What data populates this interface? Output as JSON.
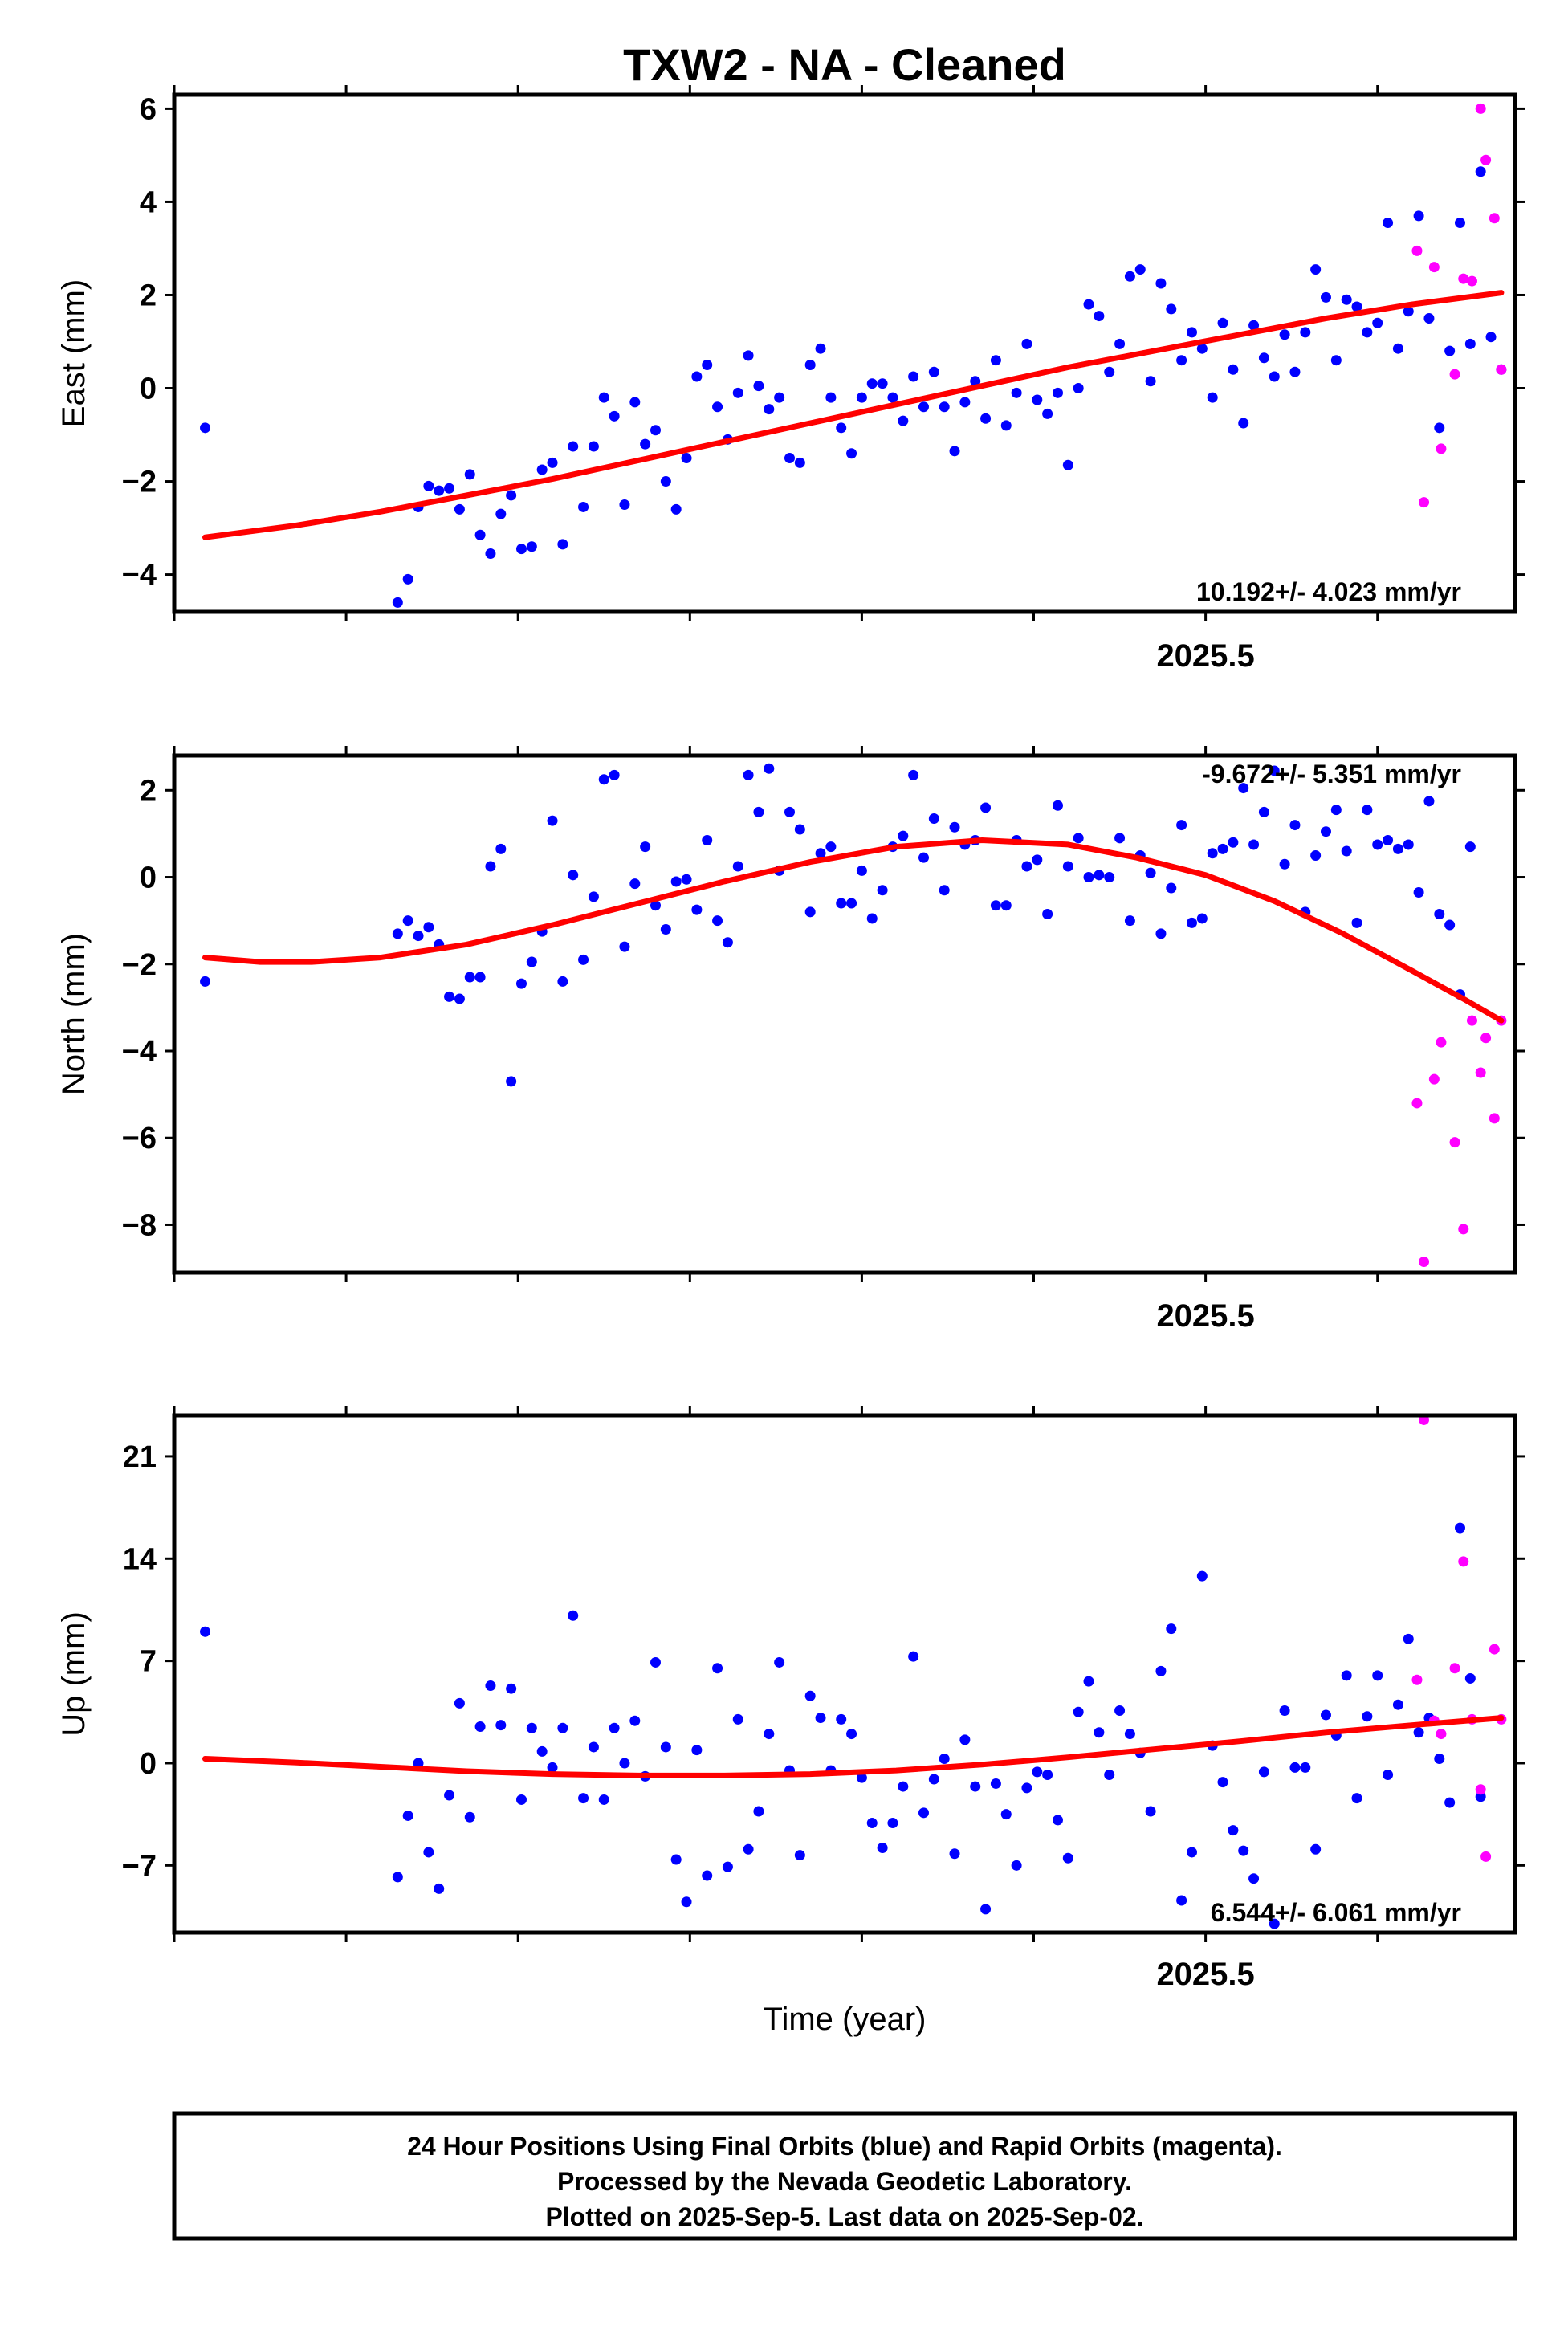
{
  "chart_data": {
    "type": "scatter",
    "title": "TXW2  - NA - Cleaned",
    "xlabel": "Time (year)",
    "xlim": [
      2024.9,
      2025.68
    ],
    "x_tick_label": "2025.5",
    "legend": "none",
    "panels": [
      {
        "name": "east",
        "ylabel": "East (mm)",
        "ylim": [
          -4.8,
          6.3
        ],
        "yticks": [
          -4,
          -2,
          0,
          2,
          4,
          6
        ],
        "ytick_labels": [
          "−4",
          "−2",
          "0",
          "2",
          "4",
          "6"
        ],
        "rate_label": "10.192+/- 4.023 mm/yr",
        "final": {
          "name": "Final Orbits",
          "color": "#0000ff",
          "x": [
            2024.918,
            2025.03,
            2025.036,
            2025.042,
            2025.048,
            2025.054,
            2025.06,
            2025.066,
            2025.072,
            2025.078,
            2025.084,
            2025.09,
            2025.096,
            2025.102,
            2025.108,
            2025.114,
            2025.12,
            2025.126,
            2025.132,
            2025.138,
            2025.144,
            2025.15,
            2025.156,
            2025.162,
            2025.168,
            2025.174,
            2025.18,
            2025.186,
            2025.192,
            2025.198,
            2025.204,
            2025.21,
            2025.216,
            2025.222,
            2025.228,
            2025.234,
            2025.24,
            2025.246,
            2025.252,
            2025.258,
            2025.264,
            2025.27,
            2025.276,
            2025.282,
            2025.288,
            2025.294,
            2025.3,
            2025.306,
            2025.312,
            2025.318,
            2025.324,
            2025.33,
            2025.336,
            2025.342,
            2025.348,
            2025.354,
            2025.36,
            2025.366,
            2025.372,
            2025.378,
            2025.384,
            2025.39,
            2025.396,
            2025.402,
            2025.408,
            2025.414,
            2025.42,
            2025.426,
            2025.432,
            2025.438,
            2025.444,
            2025.45,
            2025.456,
            2025.462,
            2025.468,
            2025.474,
            2025.48,
            2025.486,
            2025.492,
            2025.498,
            2025.504,
            2025.51,
            2025.516,
            2025.522,
            2025.528,
            2025.534,
            2025.54,
            2025.546,
            2025.552,
            2025.558,
            2025.564,
            2025.57,
            2025.576,
            2025.582,
            2025.588,
            2025.594,
            2025.6,
            2025.606,
            2025.612,
            2025.618,
            2025.624
          ],
          "y": [
            -0.85,
            -4.6,
            -4.1,
            -2.55,
            -2.1,
            -2.2,
            -2.15,
            -2.6,
            -1.85,
            -3.15,
            -3.55,
            -2.7,
            -2.3,
            -3.45,
            -3.4,
            -1.75,
            -1.6,
            -3.35,
            -1.25,
            -2.55,
            -1.25,
            -0.2,
            -0.6,
            -2.5,
            -0.3,
            -1.2,
            -0.9,
            -2.0,
            -2.6,
            -1.5,
            0.25,
            0.5,
            -0.4,
            -1.1,
            -0.1,
            0.7,
            0.05,
            -0.45,
            -0.2,
            -1.5,
            -1.6,
            0.5,
            0.85,
            -0.2,
            -0.85,
            -1.4,
            -0.2,
            0.1,
            0.1,
            -0.2,
            -0.7,
            0.25,
            -0.4,
            0.35,
            -0.4,
            -1.35,
            -0.3,
            0.15,
            -0.65,
            0.6,
            -0.8,
            -0.1,
            0.95,
            -0.25,
            -0.55,
            -0.1,
            -1.65,
            0.0,
            1.8,
            1.55,
            0.35,
            0.95,
            2.4,
            2.55,
            0.15,
            2.25,
            1.7,
            0.6,
            1.2,
            0.85,
            -0.2,
            1.4,
            0.4,
            -0.75,
            1.35,
            0.65,
            0.25,
            1.15,
            0.35,
            1.2,
            2.55,
            1.95,
            0.6,
            1.9,
            1.75,
            1.2,
            1.4,
            3.55,
            0.85,
            1.65,
            3.7
          ]
        },
        "rapid": {
          "name": "Rapid Orbits",
          "color": "#ff00ff",
          "x": [
            2025.63,
            2025.636,
            2025.642,
            2025.648,
            2025.654,
            2025.66,
            2025.666,
            2025.672
          ],
          "y": [
            1.5,
            -0.85,
            0.8,
            3.55,
            0.95,
            4.65,
            1.1,
            0.4
          ]
        },
        "rapid_extra": {
          "x": [
            2025.623,
            2025.627,
            2025.633,
            2025.637,
            2025.645,
            2025.65,
            2025.655,
            2025.66,
            2025.663,
            2025.668,
            2025.672
          ],
          "y": [
            2.95,
            -2.45,
            2.6,
            -1.3,
            0.3,
            2.35,
            2.3,
            6.0,
            4.9,
            3.65,
            0.4
          ]
        },
        "trend": {
          "name": "Model",
          "color": "#ff0000",
          "x": [
            2024.918,
            2024.97,
            2025.02,
            2025.07,
            2025.12,
            2025.17,
            2025.22,
            2025.27,
            2025.32,
            2025.37,
            2025.42,
            2025.47,
            2025.52,
            2025.57,
            2025.62,
            2025.672
          ],
          "y": [
            -3.2,
            -2.95,
            -2.65,
            -2.3,
            -1.95,
            -1.55,
            -1.15,
            -0.75,
            -0.35,
            0.05,
            0.45,
            0.8,
            1.15,
            1.5,
            1.8,
            2.05
          ]
        }
      },
      {
        "name": "north",
        "ylabel": "North (mm)",
        "ylim": [
          -9.1,
          2.8
        ],
        "yticks": [
          -8,
          -6,
          -4,
          -2,
          0,
          2
        ],
        "ytick_labels": [
          "−8",
          "−6",
          "−4",
          "−2",
          "0",
          "2"
        ],
        "rate_label": "-9.672+/- 5.351 mm/yr",
        "final": {
          "name": "Final Orbits",
          "color": "#0000ff",
          "x": [
            2024.918,
            2025.03,
            2025.036,
            2025.042,
            2025.048,
            2025.054,
            2025.06,
            2025.066,
            2025.072,
            2025.078,
            2025.084,
            2025.09,
            2025.096,
            2025.102,
            2025.108,
            2025.114,
            2025.12,
            2025.126,
            2025.132,
            2025.138,
            2025.144,
            2025.15,
            2025.156,
            2025.162,
            2025.168,
            2025.174,
            2025.18,
            2025.186,
            2025.192,
            2025.198,
            2025.204,
            2025.21,
            2025.216,
            2025.222,
            2025.228,
            2025.234,
            2025.24,
            2025.246,
            2025.252,
            2025.258,
            2025.264,
            2025.27,
            2025.276,
            2025.282,
            2025.288,
            2025.294,
            2025.3,
            2025.306,
            2025.312,
            2025.318,
            2025.324,
            2025.33,
            2025.336,
            2025.342,
            2025.348,
            2025.354,
            2025.36,
            2025.366,
            2025.372,
            2025.378,
            2025.384,
            2025.39,
            2025.396,
            2025.402,
            2025.408,
            2025.414,
            2025.42,
            2025.426,
            2025.432,
            2025.438,
            2025.444,
            2025.45,
            2025.456,
            2025.462,
            2025.468,
            2025.474,
            2025.48,
            2025.486,
            2025.492,
            2025.498,
            2025.504,
            2025.51,
            2025.516,
            2025.522,
            2025.528,
            2025.534,
            2025.54,
            2025.546,
            2025.552,
            2025.558,
            2025.564,
            2025.57,
            2025.576,
            2025.582,
            2025.588,
            2025.594,
            2025.6,
            2025.606,
            2025.612,
            2025.618,
            2025.624
          ],
          "y": [
            -2.4,
            -1.3,
            -1.0,
            -1.35,
            -1.15,
            -1.55,
            -2.75,
            -2.8,
            -2.3,
            -2.3,
            0.25,
            0.65,
            -4.7,
            -2.45,
            -1.95,
            -1.25,
            1.3,
            -2.4,
            0.05,
            -1.9,
            -0.45,
            2.25,
            2.35,
            -1.6,
            -0.15,
            0.7,
            -0.65,
            -1.2,
            -0.1,
            -0.05,
            -0.75,
            0.85,
            -1.0,
            -1.5,
            0.25,
            2.35,
            1.5,
            2.5,
            0.15,
            1.5,
            1.1,
            -0.8,
            0.55,
            0.7,
            -0.6,
            -0.6,
            0.15,
            -0.95,
            -0.3,
            0.7,
            0.95,
            2.35,
            0.45,
            1.35,
            -0.3,
            1.15,
            0.75,
            0.85,
            1.6,
            -0.65,
            -0.65,
            0.85,
            0.25,
            0.4,
            -0.85,
            1.65,
            0.25,
            0.9,
            0.0,
            0.05,
            0.0,
            0.9,
            -1.0,
            0.5,
            0.1,
            -1.3,
            -0.25,
            1.2,
            -1.05,
            -0.95,
            0.55,
            0.65,
            0.8,
            2.05,
            0.75,
            1.5,
            2.45,
            0.3,
            1.2,
            -0.8,
            0.5,
            1.05,
            1.55,
            0.6,
            -1.05,
            1.55,
            0.75,
            0.85,
            0.65,
            0.75,
            -0.35
          ]
        },
        "rapid": {
          "name": "Rapid Orbits",
          "color": "#ff00ff",
          "x": [
            2025.63,
            2025.636,
            2025.642,
            2025.648,
            2025.654
          ],
          "y": [
            1.75,
            -0.85,
            -1.1,
            -2.7,
            0.7
          ]
        },
        "rapid_extra": {
          "x": [
            2025.623,
            2025.627,
            2025.633,
            2025.637,
            2025.645,
            2025.65,
            2025.655,
            2025.66,
            2025.663,
            2025.668,
            2025.672
          ],
          "y": [
            -5.2,
            -8.85,
            -4.65,
            -3.8,
            -6.1,
            -8.1,
            -3.3,
            -4.5,
            -3.7,
            -5.55,
            -3.3
          ]
        },
        "trend": {
          "name": "Model",
          "color": "#ff0000",
          "x": [
            2024.918,
            2024.95,
            2024.98,
            2025.02,
            2025.07,
            2025.12,
            2025.17,
            2025.22,
            2025.27,
            2025.32,
            2025.37,
            2025.42,
            2025.46,
            2025.5,
            2025.54,
            2025.58,
            2025.62,
            2025.65,
            2025.672
          ],
          "y": [
            -1.85,
            -1.95,
            -1.95,
            -1.85,
            -1.55,
            -1.1,
            -0.6,
            -0.1,
            0.35,
            0.7,
            0.85,
            0.75,
            0.45,
            0.05,
            -0.55,
            -1.3,
            -2.15,
            -2.8,
            -3.3
          ]
        }
      },
      {
        "name": "up",
        "ylabel": "Up (mm)",
        "ylim": [
          -11.6,
          23.8
        ],
        "yticks": [
          -7,
          0,
          7,
          14,
          21
        ],
        "ytick_labels": [
          "−7",
          "0",
          "7",
          "14",
          "21"
        ],
        "rate_label": "6.544+/- 6.061 mm/yr",
        "final": {
          "name": "Final Orbits",
          "color": "#0000ff",
          "x": [
            2024.918,
            2025.03,
            2025.036,
            2025.042,
            2025.048,
            2025.054,
            2025.06,
            2025.066,
            2025.072,
            2025.078,
            2025.084,
            2025.09,
            2025.096,
            2025.102,
            2025.108,
            2025.114,
            2025.12,
            2025.126,
            2025.132,
            2025.138,
            2025.144,
            2025.15,
            2025.156,
            2025.162,
            2025.168,
            2025.174,
            2025.18,
            2025.186,
            2025.192,
            2025.198,
            2025.204,
            2025.21,
            2025.216,
            2025.222,
            2025.228,
            2025.234,
            2025.24,
            2025.246,
            2025.252,
            2025.258,
            2025.264,
            2025.27,
            2025.276,
            2025.282,
            2025.288,
            2025.294,
            2025.3,
            2025.306,
            2025.312,
            2025.318,
            2025.324,
            2025.33,
            2025.336,
            2025.342,
            2025.348,
            2025.354,
            2025.36,
            2025.366,
            2025.372,
            2025.378,
            2025.384,
            2025.39,
            2025.396,
            2025.402,
            2025.408,
            2025.414,
            2025.42,
            2025.426,
            2025.432,
            2025.438,
            2025.444,
            2025.45,
            2025.456,
            2025.462,
            2025.468,
            2025.474,
            2025.48,
            2025.486,
            2025.492,
            2025.498,
            2025.504,
            2025.51,
            2025.516,
            2025.522,
            2025.528,
            2025.534,
            2025.54,
            2025.546,
            2025.552,
            2025.558,
            2025.564,
            2025.57,
            2025.576,
            2025.582,
            2025.588,
            2025.594,
            2025.6,
            2025.606,
            2025.612,
            2025.618,
            2025.624
          ],
          "y": [
            9.0,
            -7.8,
            -3.6,
            0.0,
            -6.1,
            -8.6,
            -2.2,
            4.1,
            -3.7,
            2.5,
            5.3,
            2.6,
            5.1,
            -2.5,
            2.4,
            0.8,
            -0.3,
            2.4,
            10.1,
            -2.4,
            1.1,
            -2.5,
            2.4,
            0.0,
            2.9,
            -0.9,
            6.9,
            1.1,
            -6.6,
            -9.5,
            0.9,
            -7.7,
            6.5,
            -7.1,
            3.0,
            -5.9,
            -3.3,
            2.0,
            6.9,
            -0.5,
            -6.3,
            4.6,
            3.1,
            -0.5,
            3.0,
            2.0,
            -1.0,
            -4.1,
            -5.8,
            -4.1,
            -1.6,
            7.3,
            -3.4,
            -1.1,
            0.3,
            -6.2,
            1.6,
            -1.6,
            -10.0,
            -1.4,
            -3.5,
            -7.0,
            -1.7,
            -0.6,
            -0.8,
            -3.9,
            -6.5,
            3.5,
            5.6,
            2.1,
            -0.8,
            3.6,
            2.0,
            0.7,
            -3.3,
            6.3,
            9.2,
            -9.4,
            -6.1,
            12.8,
            1.2,
            -1.3,
            -4.6,
            -6.0,
            -7.9,
            -0.6,
            -11.0,
            3.6,
            -0.3,
            -0.3,
            -5.9,
            3.3,
            1.9,
            6.0,
            -2.4,
            3.2,
            6.0,
            -0.8,
            4.0,
            8.5,
            2.1
          ]
        },
        "rapid": {
          "name": "Rapid Orbits",
          "color": "#ff00ff",
          "x": [
            2025.63,
            2025.636,
            2025.642,
            2025.648,
            2025.654,
            2025.66
          ],
          "y": [
            3.1,
            0.3,
            -2.7,
            16.1,
            5.8,
            -2.3
          ]
        },
        "rapid_extra": {
          "x": [
            2025.623,
            2025.627,
            2025.633,
            2025.637,
            2025.645,
            2025.65,
            2025.655,
            2025.66,
            2025.663,
            2025.668,
            2025.672
          ],
          "y": [
            5.7,
            23.5,
            2.9,
            2.0,
            6.5,
            13.8,
            3.0,
            -1.8,
            -6.4,
            7.8,
            3.0
          ]
        },
        "trend": {
          "name": "Model",
          "color": "#ff0000",
          "x": [
            2024.918,
            2024.97,
            2025.02,
            2025.07,
            2025.12,
            2025.17,
            2025.22,
            2025.27,
            2025.32,
            2025.37,
            2025.42,
            2025.47,
            2025.52,
            2025.57,
            2025.62,
            2025.672
          ],
          "y": [
            0.3,
            0.05,
            -0.25,
            -0.55,
            -0.75,
            -0.85,
            -0.85,
            -0.75,
            -0.5,
            -0.1,
            0.4,
            0.95,
            1.5,
            2.1,
            2.6,
            3.1
          ]
        }
      }
    ],
    "footer": [
      "24 Hour Positions Using Final Orbits (blue) and Rapid Orbits (magenta).",
      "Processed by the Nevada Geodetic Laboratory.",
      "Plotted on 2025-Sep-5. Last data on 2025-Sep-02."
    ]
  }
}
